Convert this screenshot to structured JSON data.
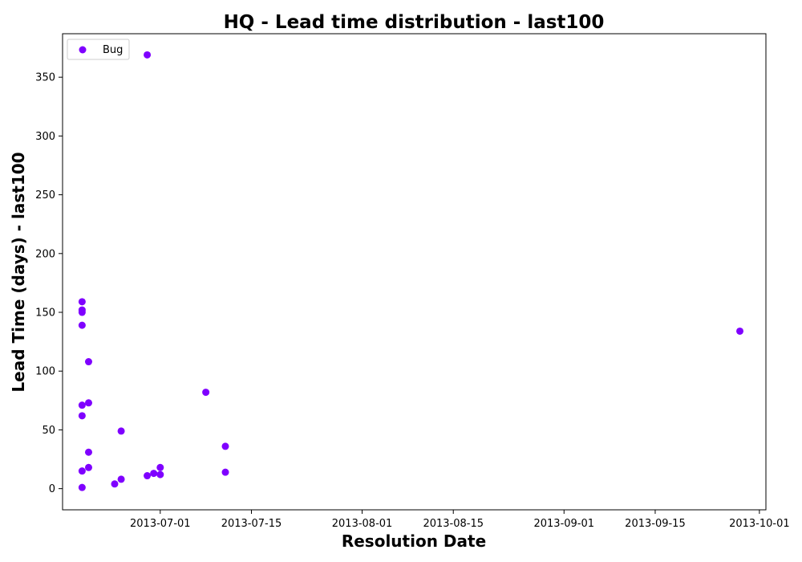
{
  "chart_data": {
    "type": "scatter",
    "title": "HQ - Lead time distribution - last100",
    "xlabel": "Resolution Date",
    "ylabel": "Lead Time (days) - last100",
    "x_type": "date",
    "xlim": [
      "2013-06-16",
      "2013-10-02"
    ],
    "ylim": [
      -18,
      387
    ],
    "x_ticks": [
      "2013-07-01",
      "2013-07-15",
      "2013-08-01",
      "2013-08-15",
      "2013-09-01",
      "2013-09-15",
      "2013-10-01"
    ],
    "y_ticks": [
      0,
      50,
      100,
      150,
      200,
      250,
      300,
      350
    ],
    "legend": {
      "position": "top-left",
      "entries": [
        "Bug"
      ]
    },
    "grid": false,
    "series": [
      {
        "name": "Bug",
        "color": "#7f00ff",
        "points": [
          {
            "x": "2013-06-19",
            "y": 159
          },
          {
            "x": "2013-06-19",
            "y": 152
          },
          {
            "x": "2013-06-19",
            "y": 150
          },
          {
            "x": "2013-06-19",
            "y": 139
          },
          {
            "x": "2013-06-19",
            "y": 71
          },
          {
            "x": "2013-06-19",
            "y": 62
          },
          {
            "x": "2013-06-19",
            "y": 15
          },
          {
            "x": "2013-06-19",
            "y": 1
          },
          {
            "x": "2013-06-20",
            "y": 108
          },
          {
            "x": "2013-06-20",
            "y": 73
          },
          {
            "x": "2013-06-20",
            "y": 31
          },
          {
            "x": "2013-06-20",
            "y": 18
          },
          {
            "x": "2013-06-24",
            "y": 4
          },
          {
            "x": "2013-06-25",
            "y": 49
          },
          {
            "x": "2013-06-25",
            "y": 8
          },
          {
            "x": "2013-06-29",
            "y": 369
          },
          {
            "x": "2013-06-29",
            "y": 11
          },
          {
            "x": "2013-06-30",
            "y": 13
          },
          {
            "x": "2013-07-01",
            "y": 12
          },
          {
            "x": "2013-07-01",
            "y": 18
          },
          {
            "x": "2013-07-08",
            "y": 82
          },
          {
            "x": "2013-07-11",
            "y": 36
          },
          {
            "x": "2013-07-11",
            "y": 14
          },
          {
            "x": "2013-09-28",
            "y": 134
          }
        ]
      }
    ]
  }
}
